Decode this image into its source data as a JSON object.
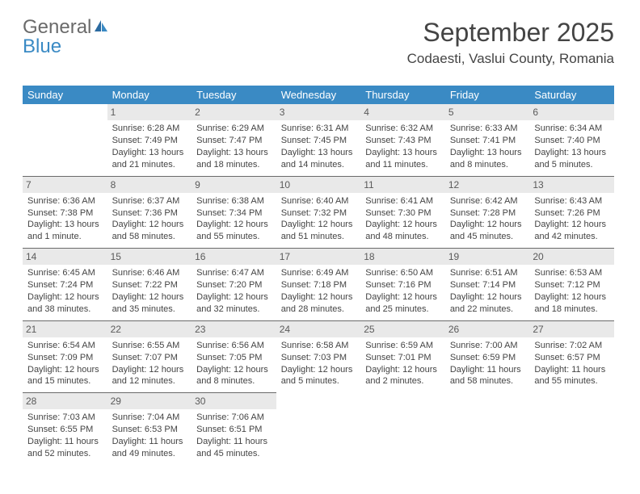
{
  "logo": {
    "word1": "General",
    "word2": "Blue"
  },
  "header": {
    "monthYear": "September 2025",
    "location": "Codaesti, Vaslui County, Romania"
  },
  "colors": {
    "headerBar": "#3a8ac4",
    "headerText": "#ffffff",
    "dayNumBg": "#e9e9e9",
    "bodyText": "#444444",
    "rowDivider": "#6a6a6a",
    "logoGrey": "#6a6a6a",
    "logoBlue": "#3a8ac4",
    "pageBg": "#ffffff"
  },
  "layout": {
    "pageWidth": 792,
    "pageHeight": 612,
    "calendarTop": 106,
    "calendarLeft": 28,
    "calendarWidth": 732,
    "cellFontSize": 11,
    "headerFontSize": 13,
    "titleFontSize": 32,
    "locationFontSize": 17
  },
  "dayHeaders": [
    "Sunday",
    "Monday",
    "Tuesday",
    "Wednesday",
    "Thursday",
    "Friday",
    "Saturday"
  ],
  "weeks": [
    [
      null,
      {
        "n": "1",
        "sr": "Sunrise: 6:28 AM",
        "ss": "Sunset: 7:49 PM",
        "d1": "Daylight: 13 hours",
        "d2": "and 21 minutes."
      },
      {
        "n": "2",
        "sr": "Sunrise: 6:29 AM",
        "ss": "Sunset: 7:47 PM",
        "d1": "Daylight: 13 hours",
        "d2": "and 18 minutes."
      },
      {
        "n": "3",
        "sr": "Sunrise: 6:31 AM",
        "ss": "Sunset: 7:45 PM",
        "d1": "Daylight: 13 hours",
        "d2": "and 14 minutes."
      },
      {
        "n": "4",
        "sr": "Sunrise: 6:32 AM",
        "ss": "Sunset: 7:43 PM",
        "d1": "Daylight: 13 hours",
        "d2": "and 11 minutes."
      },
      {
        "n": "5",
        "sr": "Sunrise: 6:33 AM",
        "ss": "Sunset: 7:41 PM",
        "d1": "Daylight: 13 hours",
        "d2": "and 8 minutes."
      },
      {
        "n": "6",
        "sr": "Sunrise: 6:34 AM",
        "ss": "Sunset: 7:40 PM",
        "d1": "Daylight: 13 hours",
        "d2": "and 5 minutes."
      }
    ],
    [
      {
        "n": "7",
        "sr": "Sunrise: 6:36 AM",
        "ss": "Sunset: 7:38 PM",
        "d1": "Daylight: 13 hours",
        "d2": "and 1 minute."
      },
      {
        "n": "8",
        "sr": "Sunrise: 6:37 AM",
        "ss": "Sunset: 7:36 PM",
        "d1": "Daylight: 12 hours",
        "d2": "and 58 minutes."
      },
      {
        "n": "9",
        "sr": "Sunrise: 6:38 AM",
        "ss": "Sunset: 7:34 PM",
        "d1": "Daylight: 12 hours",
        "d2": "and 55 minutes."
      },
      {
        "n": "10",
        "sr": "Sunrise: 6:40 AM",
        "ss": "Sunset: 7:32 PM",
        "d1": "Daylight: 12 hours",
        "d2": "and 51 minutes."
      },
      {
        "n": "11",
        "sr": "Sunrise: 6:41 AM",
        "ss": "Sunset: 7:30 PM",
        "d1": "Daylight: 12 hours",
        "d2": "and 48 minutes."
      },
      {
        "n": "12",
        "sr": "Sunrise: 6:42 AM",
        "ss": "Sunset: 7:28 PM",
        "d1": "Daylight: 12 hours",
        "d2": "and 45 minutes."
      },
      {
        "n": "13",
        "sr": "Sunrise: 6:43 AM",
        "ss": "Sunset: 7:26 PM",
        "d1": "Daylight: 12 hours",
        "d2": "and 42 minutes."
      }
    ],
    [
      {
        "n": "14",
        "sr": "Sunrise: 6:45 AM",
        "ss": "Sunset: 7:24 PM",
        "d1": "Daylight: 12 hours",
        "d2": "and 38 minutes."
      },
      {
        "n": "15",
        "sr": "Sunrise: 6:46 AM",
        "ss": "Sunset: 7:22 PM",
        "d1": "Daylight: 12 hours",
        "d2": "and 35 minutes."
      },
      {
        "n": "16",
        "sr": "Sunrise: 6:47 AM",
        "ss": "Sunset: 7:20 PM",
        "d1": "Daylight: 12 hours",
        "d2": "and 32 minutes."
      },
      {
        "n": "17",
        "sr": "Sunrise: 6:49 AM",
        "ss": "Sunset: 7:18 PM",
        "d1": "Daylight: 12 hours",
        "d2": "and 28 minutes."
      },
      {
        "n": "18",
        "sr": "Sunrise: 6:50 AM",
        "ss": "Sunset: 7:16 PM",
        "d1": "Daylight: 12 hours",
        "d2": "and 25 minutes."
      },
      {
        "n": "19",
        "sr": "Sunrise: 6:51 AM",
        "ss": "Sunset: 7:14 PM",
        "d1": "Daylight: 12 hours",
        "d2": "and 22 minutes."
      },
      {
        "n": "20",
        "sr": "Sunrise: 6:53 AM",
        "ss": "Sunset: 7:12 PM",
        "d1": "Daylight: 12 hours",
        "d2": "and 18 minutes."
      }
    ],
    [
      {
        "n": "21",
        "sr": "Sunrise: 6:54 AM",
        "ss": "Sunset: 7:09 PM",
        "d1": "Daylight: 12 hours",
        "d2": "and 15 minutes."
      },
      {
        "n": "22",
        "sr": "Sunrise: 6:55 AM",
        "ss": "Sunset: 7:07 PM",
        "d1": "Daylight: 12 hours",
        "d2": "and 12 minutes."
      },
      {
        "n": "23",
        "sr": "Sunrise: 6:56 AM",
        "ss": "Sunset: 7:05 PM",
        "d1": "Daylight: 12 hours",
        "d2": "and 8 minutes."
      },
      {
        "n": "24",
        "sr": "Sunrise: 6:58 AM",
        "ss": "Sunset: 7:03 PM",
        "d1": "Daylight: 12 hours",
        "d2": "and 5 minutes."
      },
      {
        "n": "25",
        "sr": "Sunrise: 6:59 AM",
        "ss": "Sunset: 7:01 PM",
        "d1": "Daylight: 12 hours",
        "d2": "and 2 minutes."
      },
      {
        "n": "26",
        "sr": "Sunrise: 7:00 AM",
        "ss": "Sunset: 6:59 PM",
        "d1": "Daylight: 11 hours",
        "d2": "and 58 minutes."
      },
      {
        "n": "27",
        "sr": "Sunrise: 7:02 AM",
        "ss": "Sunset: 6:57 PM",
        "d1": "Daylight: 11 hours",
        "d2": "and 55 minutes."
      }
    ],
    [
      {
        "n": "28",
        "sr": "Sunrise: 7:03 AM",
        "ss": "Sunset: 6:55 PM",
        "d1": "Daylight: 11 hours",
        "d2": "and 52 minutes."
      },
      {
        "n": "29",
        "sr": "Sunrise: 7:04 AM",
        "ss": "Sunset: 6:53 PM",
        "d1": "Daylight: 11 hours",
        "d2": "and 49 minutes."
      },
      {
        "n": "30",
        "sr": "Sunrise: 7:06 AM",
        "ss": "Sunset: 6:51 PM",
        "d1": "Daylight: 11 hours",
        "d2": "and 45 minutes."
      },
      null,
      null,
      null,
      null
    ]
  ]
}
